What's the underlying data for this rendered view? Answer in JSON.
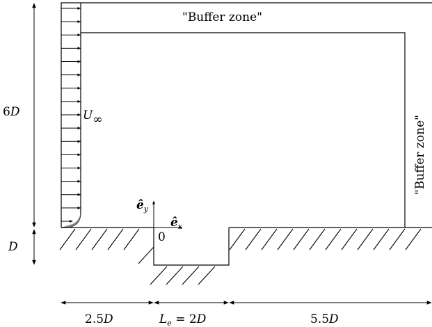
{
  "labels": {
    "buffer_top": "\"Buffer zone\"",
    "buffer_right": "\"Buffer zone\"",
    "height_label": "6",
    "height_unit": "D",
    "step_label": "D",
    "inflow_label": "U",
    "inflow_sub": "∞",
    "origin_label": "0",
    "ey_label": "ê",
    "ey_sub": "y",
    "ex_label": "ê",
    "ex_sub": "x",
    "dim_left_num": "2.5",
    "dim_left_unit": "D",
    "dim_mid_L": "L",
    "dim_mid_sub": "e",
    "dim_mid_eq": " = 2",
    "dim_mid_unit": "D",
    "dim_right_num": "5.5",
    "dim_right_unit": "D"
  },
  "inflow_arrow_count": 17
}
